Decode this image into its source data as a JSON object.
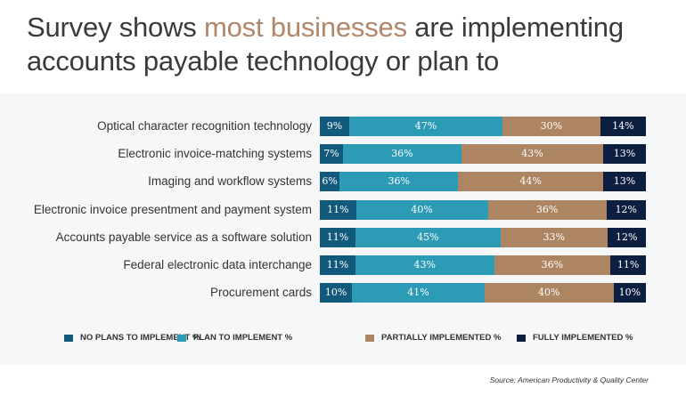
{
  "title": {
    "part1": "Survey shows ",
    "highlight": "most businesses",
    "part2": " are implementing",
    "line2": "accounts payable technology or plan to"
  },
  "colors": {
    "no_plans": "#125a7c",
    "plan": "#2c9bb5",
    "partial": "#ae8563",
    "full": "#0c1f40",
    "highlight": "#b0876a"
  },
  "chart_data": {
    "type": "bar",
    "orientation": "horizontal",
    "stacked": true,
    "title": "Survey shows most businesses are implementing accounts payable technology or plan to",
    "categories": [
      "Optical character recognition technology",
      "Electronic invoice-matching systems",
      "Imaging and workflow systems",
      "Electronic invoice presentment and payment system",
      "Accounts payable service as a software solution",
      "Federal electronic data interchange",
      "Procurement cards"
    ],
    "series": [
      {
        "name": "NO PLANS TO IMPLEMENT %",
        "key": "no_plans",
        "values": [
          9,
          7,
          6,
          11,
          11,
          11,
          10
        ]
      },
      {
        "name": "PLAN TO IMPLEMENT %",
        "key": "plan",
        "values": [
          47,
          36,
          36,
          40,
          45,
          43,
          41
        ]
      },
      {
        "name": "PARTIALLY IMPLEMENTED %",
        "key": "partial",
        "values": [
          30,
          43,
          44,
          36,
          33,
          36,
          40
        ]
      },
      {
        "name": "FULLY IMPLEMENTED %",
        "key": "full",
        "values": [
          14,
          13,
          13,
          12,
          12,
          11,
          10
        ]
      }
    ],
    "legend": "bottom",
    "xlim": [
      0,
      100
    ]
  },
  "source": "Source: American Productivity & Quality Center"
}
